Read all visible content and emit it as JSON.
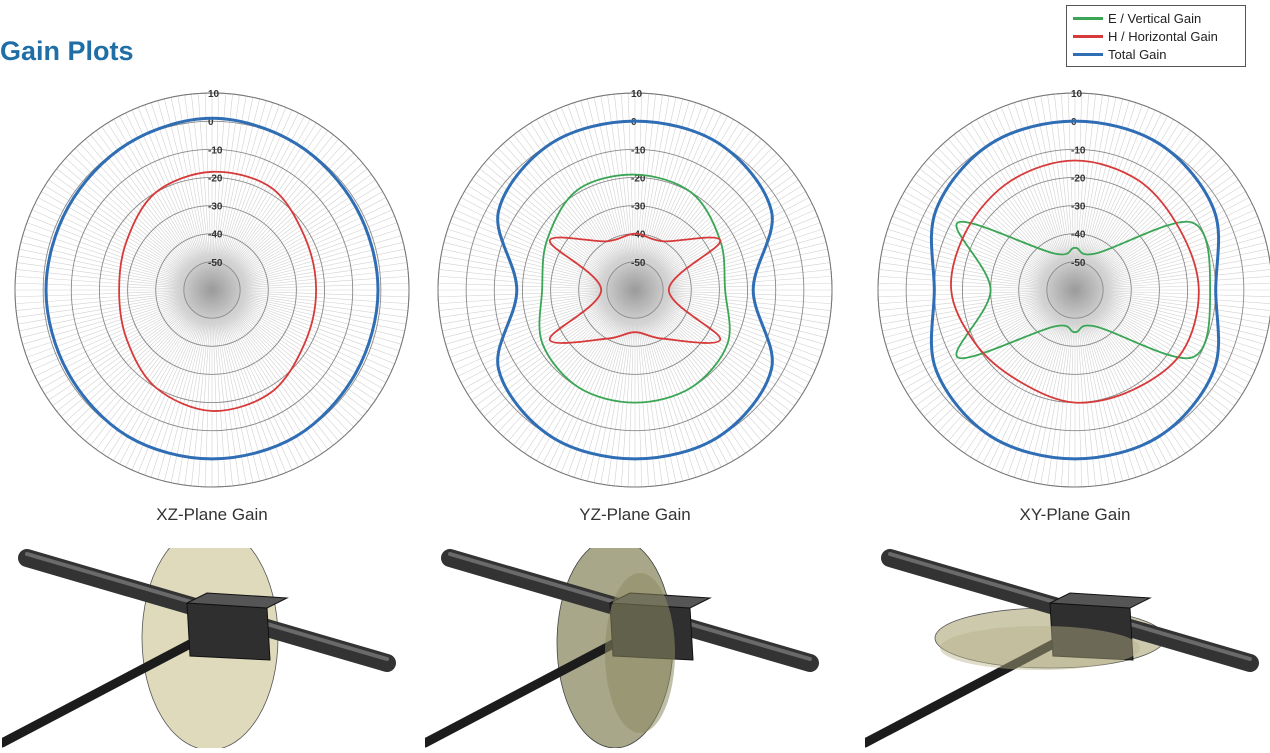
{
  "header": {
    "title": "Gain Plots"
  },
  "legend": {
    "items": [
      {
        "label": "E / Vertical Gain",
        "color": "#3aa655"
      },
      {
        "label": "H / Horizontal Gain",
        "color": "#d63a3a"
      },
      {
        "label": "Total Gain",
        "color": "#2f6eb5"
      }
    ]
  },
  "chart_data": [
    {
      "type": "polar",
      "caption": "XZ-Plane Gain",
      "rlim": [
        -60,
        10
      ],
      "r_ticks": [
        "10",
        "0",
        "-10",
        "-20",
        "-30",
        "-40",
        "-50"
      ],
      "grid": true,
      "angles_deg": [
        0,
        30,
        60,
        90,
        120,
        150,
        180,
        210,
        240,
        270,
        300,
        330
      ],
      "series": [
        {
          "name": "Total Gain",
          "values": [
            1,
            0,
            -1,
            -1,
            -1,
            0,
            0,
            0,
            -1,
            -1,
            -1,
            0
          ]
        },
        {
          "name": "H / Horizontal Gain",
          "values": [
            -18,
            -18,
            -22,
            -23,
            -22,
            -18,
            -17,
            -20,
            -25,
            -27,
            -25,
            -20
          ]
        }
      ]
    },
    {
      "type": "polar",
      "caption": "YZ-Plane Gain",
      "rlim": [
        -60,
        10
      ],
      "r_ticks": [
        "10",
        "0",
        "-10",
        "-20",
        "-30",
        "-40",
        "-50"
      ],
      "grid": true,
      "angles_deg": [
        0,
        30,
        60,
        90,
        120,
        150,
        180,
        210,
        240,
        270,
        300,
        330
      ],
      "series": [
        {
          "name": "Total Gain",
          "values": [
            0,
            0,
            -4,
            -18,
            -4,
            0,
            0,
            0,
            -4,
            -18,
            -4,
            0
          ]
        },
        {
          "name": "E / Vertical Gain",
          "values": [
            -19,
            -20,
            -25,
            -28,
            -22,
            -20,
            -20,
            -20,
            -22,
            -27,
            -24,
            -19
          ]
        },
        {
          "name": "H / Horizontal Gain",
          "values": [
            -40,
            -40,
            -25,
            -48,
            -25,
            -40,
            -45,
            -40,
            -25,
            -48,
            -25,
            -40
          ]
        }
      ]
    },
    {
      "type": "polar",
      "caption": "XY-Plane Gain",
      "rlim": [
        -60,
        10
      ],
      "r_ticks": [
        "10",
        "0",
        "-10",
        "-20",
        "-30",
        "-40",
        "-50"
      ],
      "grid": true,
      "angles_deg": [
        0,
        30,
        60,
        90,
        120,
        150,
        180,
        210,
        240,
        270,
        300,
        330
      ],
      "series": [
        {
          "name": "Total Gain",
          "values": [
            0,
            0,
            -3,
            -10,
            -3,
            0,
            0,
            0,
            -3,
            -10,
            -3,
            0
          ]
        },
        {
          "name": "E / Vertical Gain",
          "values": [
            -45,
            -45,
            -12,
            -12,
            -12,
            -45,
            -45,
            -45,
            -12,
            -30,
            -12,
            -45
          ]
        },
        {
          "name": "H / Horizontal Gain",
          "values": [
            -14,
            -15,
            -17,
            -16,
            -16,
            -19,
            -20,
            -22,
            -20,
            -16,
            -16,
            -15
          ]
        }
      ]
    }
  ],
  "antenna_images": [
    {
      "plane_fill": "#c8c28e"
    },
    {
      "plane_fill": "#8c8a62"
    },
    {
      "plane_fill": "#b8b28a"
    }
  ]
}
